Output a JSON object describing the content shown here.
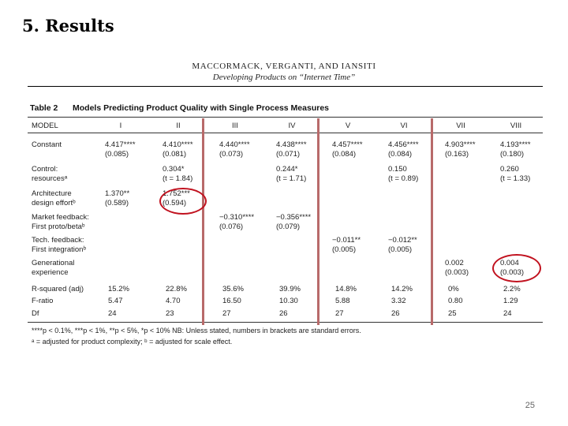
{
  "slide": {
    "title": "5. Results",
    "page_number": "25"
  },
  "paper": {
    "authors": "MACCORMACK, VERGANTI, AND IANSITI",
    "subtitle": "Developing Products on “Internet Time”"
  },
  "table": {
    "label": "Table 2",
    "caption": "Models Predicting Product Quality with Single Process Measures",
    "model_header": "MODEL",
    "columns": [
      "I",
      "II",
      "III",
      "IV",
      "V",
      "VI",
      "VII",
      "VIII"
    ],
    "rows": [
      {
        "label": [
          "Constant"
        ],
        "cells": [
          [
            "4.417****",
            "(0.085)"
          ],
          [
            "4.410****",
            "(0.081)"
          ],
          [
            "4.440****",
            "(0.073)"
          ],
          [
            "4.438****",
            "(0.071)"
          ],
          [
            "4.457****",
            "(0.084)"
          ],
          [
            "4.456****",
            "(0.084)"
          ],
          [
            "4.903****",
            "(0.163)"
          ],
          [
            "4.193****",
            "(0.180)"
          ]
        ]
      },
      {
        "label": [
          "Control:",
          "  resourcesᵃ"
        ],
        "cells": [
          [],
          [
            "0.304*",
            "(t = 1.84)"
          ],
          [],
          [
            "0.244*",
            "(t = 1.71)"
          ],
          [],
          [
            "0.150",
            "(t = 0.89)"
          ],
          [],
          [
            "0.260",
            "(t = 1.33)"
          ]
        ]
      },
      {
        "label": [
          "Architecture",
          "  design effortᵇ"
        ],
        "cells": [
          [
            "1.370**",
            "(0.589)"
          ],
          [
            "1.752***",
            "(0.594)"
          ],
          [],
          [],
          [],
          [],
          [],
          []
        ]
      },
      {
        "label": [
          "Market feedback:",
          "  First proto/betaᵇ"
        ],
        "cells": [
          [],
          [],
          [
            "−0.310****",
            "(0.076)"
          ],
          [
            "−0.356****",
            "(0.079)"
          ],
          [],
          [],
          [],
          []
        ]
      },
      {
        "label": [
          "Tech. feedback:",
          "  First integrationᵇ"
        ],
        "cells": [
          [],
          [],
          [],
          [],
          [
            "−0.011**",
            "(0.005)"
          ],
          [
            "−0.012**",
            "(0.005)"
          ],
          [],
          []
        ]
      },
      {
        "label": [
          "Generational",
          "  experience"
        ],
        "cells": [
          [],
          [],
          [],
          [],
          [],
          [],
          [
            "0.002",
            "(0.003)"
          ],
          [
            "0.004",
            "(0.003)"
          ]
        ]
      }
    ],
    "stats": [
      {
        "label": "R-squared (adj)",
        "values": [
          "15.2%",
          "22.8%",
          "35.6%",
          "39.9%",
          "14.8%",
          "14.2%",
          "0%",
          "2.2%"
        ]
      },
      {
        "label": "F-ratio",
        "values": [
          "5.47",
          "4.70",
          "16.50",
          "10.30",
          "5.88",
          "3.32",
          "0.80",
          "1.29"
        ]
      },
      {
        "label": "Df",
        "values": [
          "24",
          "23",
          "27",
          "26",
          "27",
          "26",
          "25",
          "24"
        ]
      }
    ],
    "footnotes": [
      "****p < 0.1%, ***p < 1%, **p < 5%, *p < 10% NB: Unless stated, numbers in brackets are standard errors.",
      "ᵃ = adjusted for product complexity; ᵇ = adjusted for scale effect."
    ]
  },
  "annotations": {
    "highlight_color": "#c1121f",
    "divider_color": "#b86a6a"
  }
}
